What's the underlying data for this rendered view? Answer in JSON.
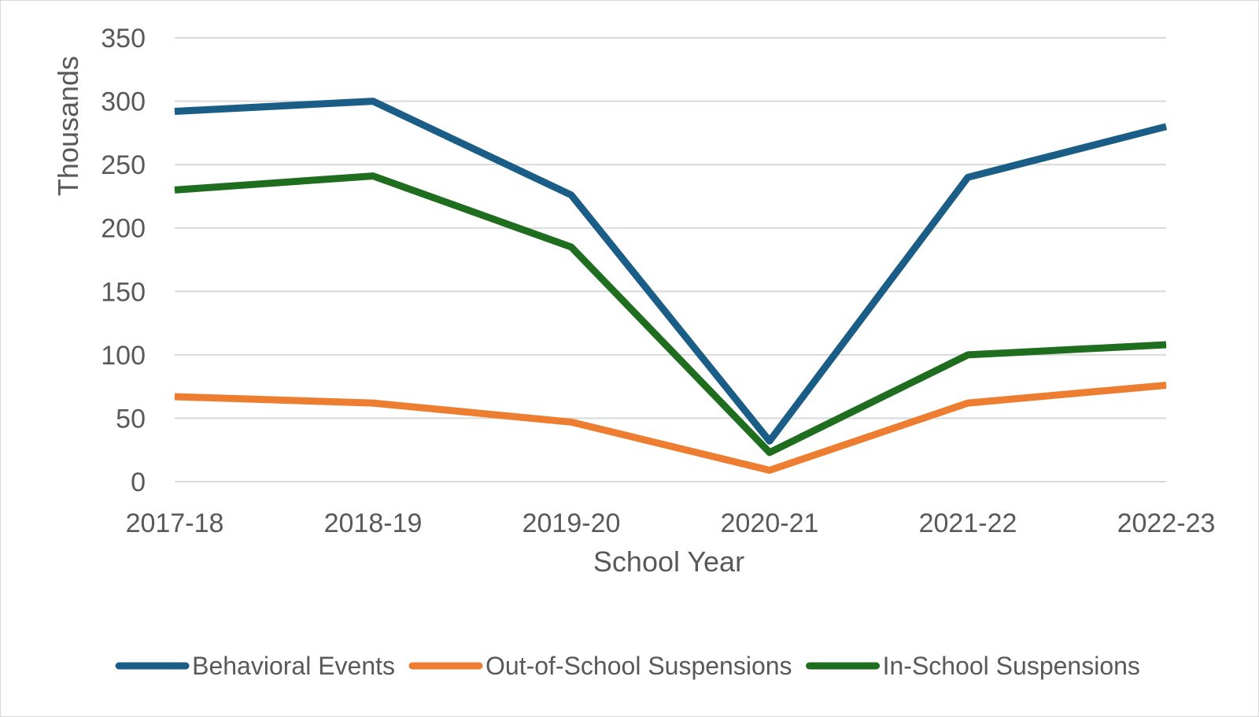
{
  "chart_data": {
    "type": "line",
    "title": "",
    "xlabel": "School Year",
    "ylabel": "Thousands",
    "categories": [
      "2017-18",
      "2018-19",
      "2019-20",
      "2020-21",
      "2021-22",
      "2022-23"
    ],
    "ylim": [
      0,
      350
    ],
    "yticks": [
      0,
      50,
      100,
      150,
      200,
      250,
      300,
      350
    ],
    "ytick_labels": [
      "0",
      "50",
      "100",
      "150",
      "200",
      "250",
      "300",
      "350"
    ],
    "grid": true,
    "legend_position": "bottom",
    "series": [
      {
        "name": "Behavioral Events",
        "color": "#1a5e87",
        "values": [
          292,
          300,
          226,
          32,
          240,
          280
        ]
      },
      {
        "name": "Out-of-School Suspensions",
        "color": "#ed7d31",
        "values": [
          67,
          62,
          47,
          9,
          62,
          76
        ]
      },
      {
        "name": "In-School Suspensions",
        "color": "#1f6e1f",
        "values": [
          230,
          241,
          185,
          23,
          100,
          108
        ]
      }
    ]
  }
}
